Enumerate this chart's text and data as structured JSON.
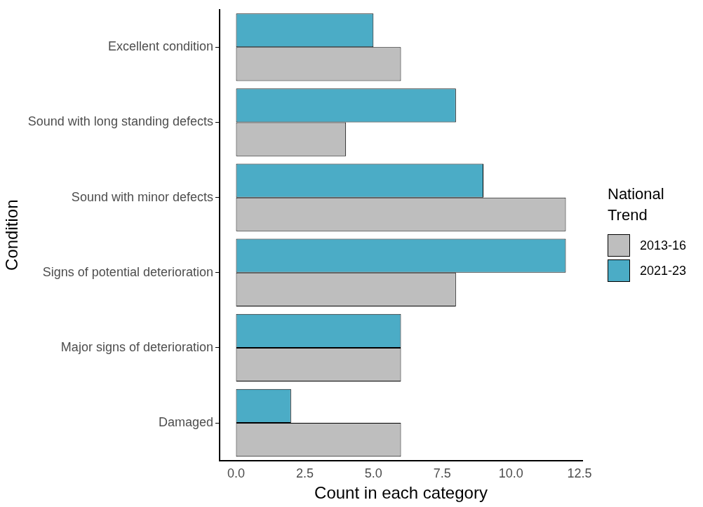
{
  "chart_data": {
    "type": "bar",
    "orientation": "horizontal",
    "xlabel": "Count in each category",
    "ylabel": "Condition",
    "legend_title": "National Trend",
    "legend": "right",
    "categories": [
      "Excellent condition",
      "Sound with long standing defects",
      "Sound with minor defects",
      "Signs of potential deterioration",
      "Major signs of deterioration",
      "Damaged"
    ],
    "series": [
      {
        "name": "2013-16",
        "color": "#bebebe",
        "values": [
          6,
          4,
          12,
          8,
          6,
          6
        ]
      },
      {
        "name": "2021-23",
        "color": "#4bacc6",
        "values": [
          5,
          8,
          9,
          12,
          6,
          2
        ]
      }
    ],
    "xlim": [
      -0.6,
      12.6
    ],
    "xticks": [
      {
        "value": 0,
        "label": "0.0"
      },
      2.5,
      {
        "value": 5,
        "label": "5.0"
      },
      7.5,
      {
        "value": 10,
        "label": "10.0"
      },
      12.5
    ],
    "grid": false
  }
}
